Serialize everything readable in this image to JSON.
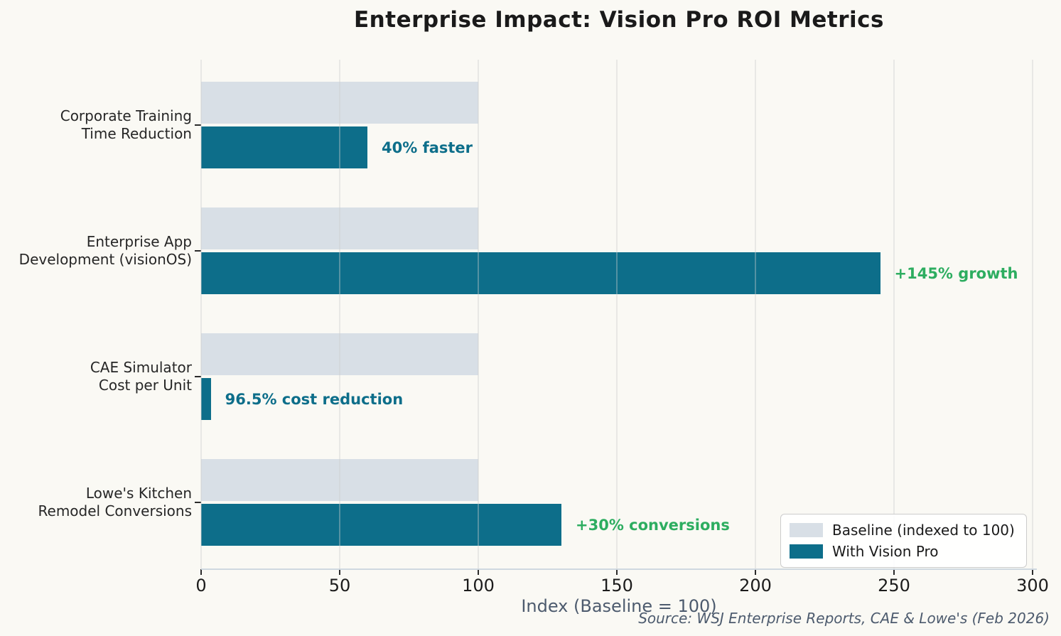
{
  "title": "Enterprise Impact: Vision Pro ROI Metrics",
  "source_note": "Source: WSJ Enterprise Reports, CAE & Lowe's (Feb 2026)",
  "chart_data": {
    "type": "bar",
    "orientation": "horizontal",
    "title": "Enterprise Impact: Vision Pro ROI Metrics",
    "xlabel": "Index (Baseline = 100)",
    "ylabel": "",
    "xlim": [
      0,
      300
    ],
    "xticks": [
      0,
      50,
      100,
      150,
      200,
      250,
      300
    ],
    "grid": true,
    "legend_position": "lower right",
    "categories": [
      "Corporate Training\nTime Reduction",
      "Enterprise App\nDevelopment (visionOS)",
      "CAE Simulator\nCost per Unit",
      "Lowe's Kitchen\nRemodel Conversions"
    ],
    "series": [
      {
        "name": "Baseline (indexed to 100)",
        "color": "#d8dfe6",
        "values": [
          100,
          100,
          100,
          100
        ]
      },
      {
        "name": "With Vision Pro",
        "color": "#0d6e8a",
        "values": [
          60,
          245,
          3.5,
          130
        ]
      }
    ],
    "annotations": [
      {
        "text": "40% faster",
        "color": "#0d6e8a"
      },
      {
        "text": "+145% growth",
        "color": "#2dad60"
      },
      {
        "text": "96.5% cost reduction",
        "color": "#0d6e8a"
      },
      {
        "text": "+30% conversions",
        "color": "#2dad60"
      }
    ]
  }
}
